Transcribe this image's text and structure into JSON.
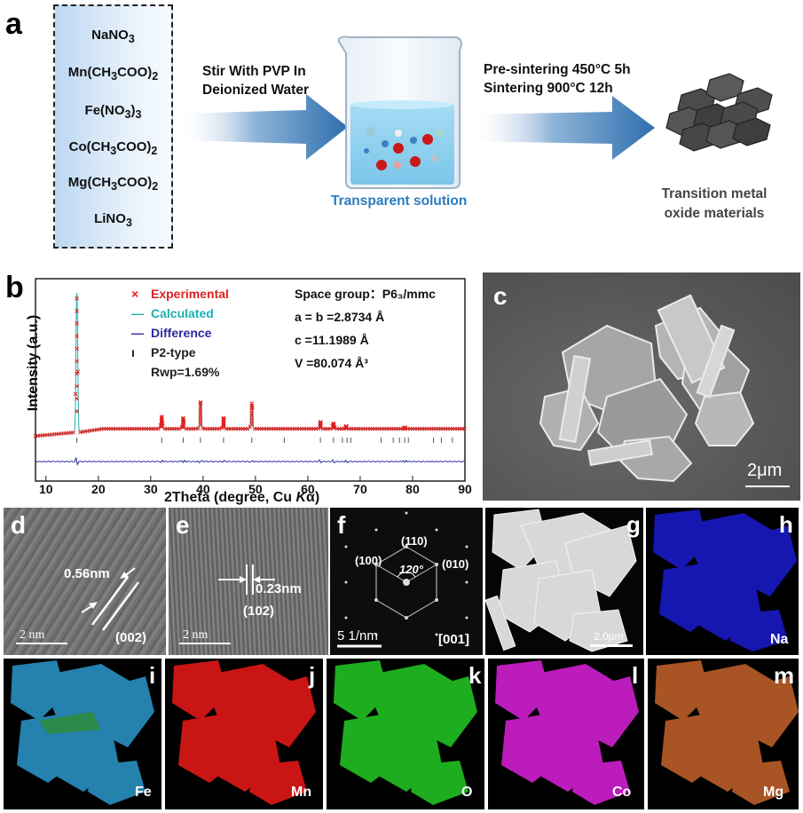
{
  "panel_labels": {
    "a": "a",
    "b": "b",
    "c": "c",
    "d": "d",
    "e": "e",
    "f": "f",
    "g": "g",
    "h": "h",
    "i": "i",
    "j": "j",
    "k": "k",
    "l": "l",
    "m": "m"
  },
  "panel_a": {
    "reagents": [
      "NaNO3",
      "Mn(CH3COO)2",
      "Fe(NO3)3",
      "Co(CH3COO)2",
      "Mg(CH3COO)2",
      "LiNO3"
    ],
    "step1": [
      "Stir With PVP In",
      "Deionized Water"
    ],
    "beaker_caption": "Transparent solution",
    "step2": [
      "Pre-sintering 450°C 5h",
      "Sintering 900°C 12h"
    ],
    "product_caption": [
      "Transition metal",
      "oxide materials"
    ]
  },
  "panel_b": {
    "legend": {
      "experimental": "Experimental",
      "calculated": "Calculated",
      "difference": "Difference",
      "p2": "P2-type",
      "rwp": "Rwp=1.69%"
    },
    "params": {
      "space_group": "Space group：P6₃/mmc",
      "ab": "a = b =2.8734 Å",
      "c": "c =11.1989 Å",
      "v": "V =80.074 Å³"
    },
    "ylabel": "Intensity (a.u.)",
    "xlabel": "2Theta (degree, Cu Kα)"
  },
  "chart_data": {
    "type": "line",
    "xlabel": "2Theta (degree, Cu Kα)",
    "ylabel": "Intensity (a.u.)",
    "xlim": [
      8,
      90
    ],
    "xticks": [
      10,
      20,
      30,
      40,
      50,
      60,
      70,
      80,
      90
    ],
    "series": [
      {
        "name": "Experimental",
        "marker": "x",
        "color": "#e02020"
      },
      {
        "name": "Calculated",
        "color": "#20b0b0"
      },
      {
        "name": "Difference",
        "color": "#2a2aa0"
      },
      {
        "name": "P2-type",
        "marker": "tick",
        "color": "#444444"
      }
    ],
    "peaks": [
      {
        "x": 15.9,
        "y": 100
      },
      {
        "x": 32.1,
        "y": 9
      },
      {
        "x": 36.2,
        "y": 8
      },
      {
        "x": 39.5,
        "y": 19
      },
      {
        "x": 43.9,
        "y": 8
      },
      {
        "x": 49.3,
        "y": 19
      },
      {
        "x": 62.4,
        "y": 5
      },
      {
        "x": 64.9,
        "y": 4
      },
      {
        "x": 67.3,
        "y": 2
      },
      {
        "x": 78.5,
        "y": 1
      }
    ],
    "p2_positions": [
      15.9,
      32.1,
      36.2,
      39.5,
      43.9,
      49.3,
      55.5,
      62.4,
      64.9,
      66.6,
      67.5,
      68.2,
      74.0,
      76.3,
      77.5,
      78.5,
      79.2,
      84.0,
      85.5,
      87.6
    ]
  },
  "panel_c": {
    "scale": "2μm"
  },
  "panel_d": {
    "spacing": "0.56nm",
    "plane": "(002)",
    "scale": "2 nm"
  },
  "panel_e": {
    "spacing": "0.23nm",
    "plane": "(102)",
    "scale": "2 nm"
  },
  "panel_f": {
    "p110": "(110)",
    "p100": "(100)",
    "p010": "(010)",
    "angle": "120°",
    "scale": "5 1/nm",
    "zone": "[001]"
  },
  "panel_g": {
    "scale": "2.0μm"
  },
  "maps": [
    {
      "letter": "h",
      "element": "Na",
      "color": "#1a1ad0"
    },
    {
      "letter": "i",
      "element": "Fe",
      "color": "#2a8fc0"
    },
    {
      "letter": "j",
      "element": "Mn",
      "color": "#e01818"
    },
    {
      "letter": "k",
      "element": "O",
      "color": "#22c022"
    },
    {
      "letter": "l",
      "element": "Co",
      "color": "#d020d0"
    },
    {
      "letter": "m",
      "element": "Mg",
      "color": "#e07030"
    }
  ]
}
